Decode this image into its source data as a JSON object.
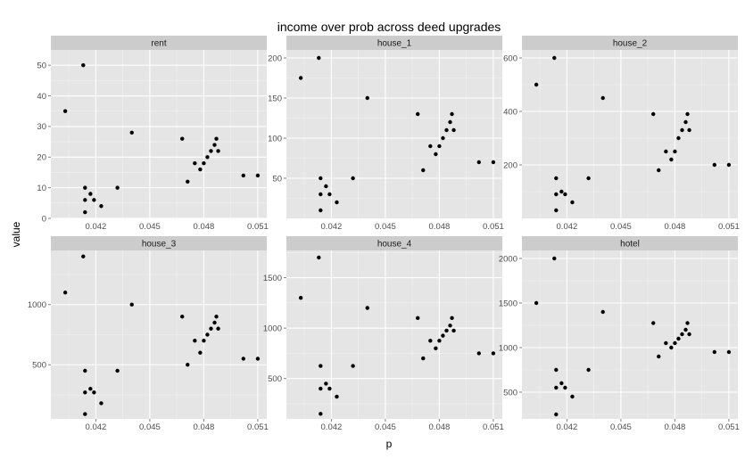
{
  "chart_data": {
    "type": "scatter",
    "title": "income over prob across deed upgrades",
    "xlabel": "p",
    "ylabel": "value",
    "xlim": [
      0.0395,
      0.0515
    ],
    "x_ticks": [
      0.042,
      0.045,
      0.048,
      0.051
    ],
    "x_tick_labels": [
      "0.042",
      "0.045",
      "0.048",
      "0.051"
    ],
    "grid": true,
    "layout": "2x3 facets, independent y scales",
    "x": [
      0.0403,
      0.0413,
      0.0414,
      0.0414,
      0.0414,
      0.0417,
      0.0419,
      0.0423,
      0.0432,
      0.044,
      0.0468,
      0.0471,
      0.0475,
      0.0478,
      0.048,
      0.0482,
      0.0484,
      0.0486,
      0.0487,
      0.0488,
      0.0502,
      0.051
    ],
    "panels": [
      {
        "name": "rent",
        "ylim": [
          0,
          55
        ],
        "y_ticks": [
          0,
          10,
          20,
          30,
          40,
          50
        ],
        "y_tick_labels": [
          "0",
          "10",
          "20",
          "30",
          "40",
          "50"
        ],
        "values": [
          35,
          50,
          6,
          10,
          2,
          8,
          6,
          4,
          10,
          28,
          26,
          12,
          18,
          16,
          18,
          20,
          22,
          24,
          26,
          22,
          14,
          14
        ]
      },
      {
        "name": "house_1",
        "ylim": [
          0,
          210
        ],
        "y_ticks": [
          50,
          100,
          150,
          200
        ],
        "y_tick_labels": [
          "50",
          "100",
          "150",
          "200"
        ],
        "values": [
          175,
          200,
          30,
          50,
          10,
          40,
          30,
          20,
          50,
          150,
          130,
          60,
          90,
          80,
          90,
          100,
          110,
          120,
          130,
          110,
          70,
          70
        ]
      },
      {
        "name": "house_2",
        "ylim": [
          0,
          630
        ],
        "y_ticks": [
          200,
          400,
          600
        ],
        "y_tick_labels": [
          "200",
          "400",
          "600"
        ],
        "values": [
          500,
          600,
          90,
          150,
          30,
          100,
          90,
          60,
          150,
          450,
          390,
          180,
          250,
          220,
          250,
          300,
          330,
          360,
          390,
          330,
          200,
          200
        ]
      },
      {
        "name": "house_3",
        "ylim": [
          50,
          1450
        ],
        "y_ticks": [
          500,
          1000
        ],
        "y_tick_labels": [
          "500",
          "1000"
        ],
        "values": [
          1100,
          1400,
          270,
          450,
          90,
          300,
          270,
          180,
          450,
          1000,
          900,
          500,
          700,
          600,
          700,
          750,
          800,
          850,
          900,
          800,
          550,
          550
        ]
      },
      {
        "name": "house_4",
        "ylim": [
          100,
          1770
        ],
        "y_ticks": [
          500,
          1000,
          1500
        ],
        "y_tick_labels": [
          "500",
          "1000",
          "1500"
        ],
        "values": [
          1300,
          1700,
          400,
          625,
          150,
          450,
          400,
          320,
          625,
          1200,
          1100,
          700,
          875,
          800,
          875,
          925,
          975,
          1025,
          1100,
          975,
          750,
          750
        ]
      },
      {
        "name": "hotel",
        "ylim": [
          200,
          2090
        ],
        "y_ticks": [
          500,
          1000,
          1500,
          2000
        ],
        "y_tick_labels": [
          "500",
          "1000",
          "1500",
          "2000"
        ],
        "values": [
          1500,
          2000,
          550,
          750,
          250,
          600,
          550,
          450,
          750,
          1400,
          1275,
          900,
          1050,
          1000,
          1050,
          1100,
          1150,
          1200,
          1275,
          1150,
          950,
          950
        ]
      }
    ]
  },
  "colors": {
    "panel_background": "#e5e5e5",
    "strip_background": "#cccccc",
    "grid_major": "#ffffff",
    "point": "#000000"
  }
}
